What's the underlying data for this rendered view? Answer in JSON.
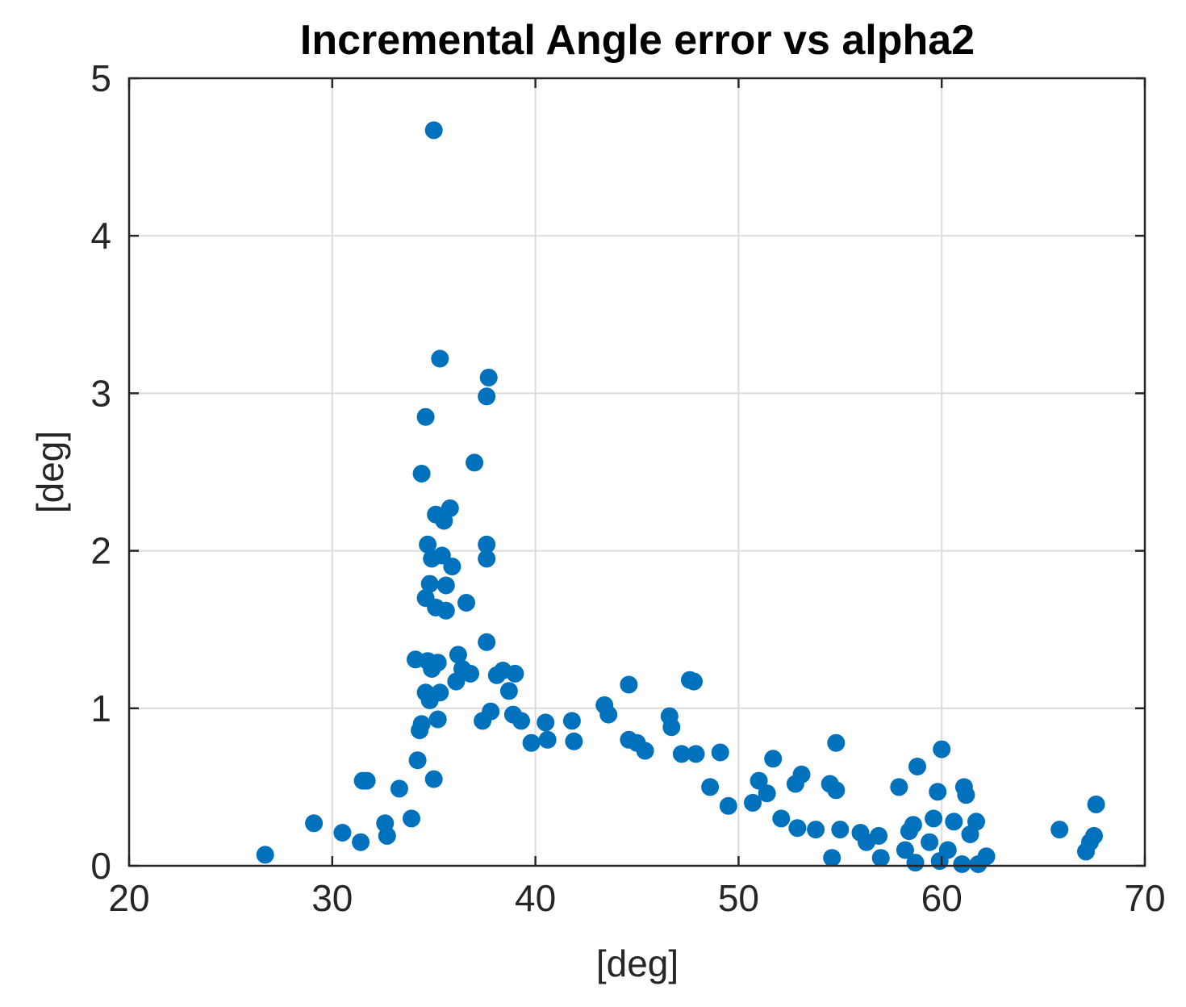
{
  "chart_data": {
    "type": "scatter",
    "title": "Incremental Angle error vs alpha2",
    "xlabel": "[deg]",
    "ylabel": "[deg]",
    "xlim": [
      20,
      70
    ],
    "ylim": [
      0,
      5
    ],
    "xticks": [
      "20",
      "30",
      "40",
      "50",
      "60",
      "70"
    ],
    "yticks": [
      "0",
      "1",
      "2",
      "3",
      "4",
      "5"
    ],
    "grid": true,
    "marker_color": "#0072BD",
    "series": [
      {
        "points": [
          [
            26.7,
            0.07
          ],
          [
            29.1,
            0.27
          ],
          [
            30.5,
            0.21
          ],
          [
            31.4,
            0.15
          ],
          [
            31.5,
            0.54
          ],
          [
            31.7,
            0.54
          ],
          [
            32.6,
            0.27
          ],
          [
            32.7,
            0.19
          ],
          [
            33.3,
            0.49
          ],
          [
            33.9,
            0.3
          ],
          [
            34.1,
            1.31
          ],
          [
            34.2,
            0.67
          ],
          [
            34.3,
            0.86
          ],
          [
            34.4,
            0.9
          ],
          [
            34.4,
            2.49
          ],
          [
            34.6,
            1.1
          ],
          [
            34.6,
            1.7
          ],
          [
            34.6,
            2.85
          ],
          [
            34.7,
            1.3
          ],
          [
            34.7,
            2.04
          ],
          [
            34.8,
            1.05
          ],
          [
            34.8,
            1.79
          ],
          [
            34.9,
            1.25
          ],
          [
            34.9,
            1.95
          ],
          [
            35.0,
            4.67
          ],
          [
            35.0,
            0.55
          ],
          [
            35.1,
            1.64
          ],
          [
            35.1,
            2.23
          ],
          [
            35.2,
            0.93
          ],
          [
            35.2,
            1.29
          ],
          [
            35.3,
            1.1
          ],
          [
            35.3,
            3.22
          ],
          [
            35.4,
            1.97
          ],
          [
            35.5,
            2.19
          ],
          [
            35.6,
            1.78
          ],
          [
            35.6,
            1.62
          ],
          [
            35.8,
            2.27
          ],
          [
            35.9,
            1.9
          ],
          [
            36.1,
            1.17
          ],
          [
            36.2,
            1.34
          ],
          [
            36.4,
            1.25
          ],
          [
            36.6,
            1.67
          ],
          [
            36.8,
            1.22
          ],
          [
            37.0,
            2.56
          ],
          [
            37.4,
            0.92
          ],
          [
            37.6,
            2.04
          ],
          [
            37.6,
            1.95
          ],
          [
            37.6,
            1.42
          ],
          [
            37.7,
            3.1
          ],
          [
            37.6,
            2.98
          ],
          [
            37.8,
            0.98
          ],
          [
            38.1,
            1.21
          ],
          [
            38.4,
            1.24
          ],
          [
            38.7,
            1.11
          ],
          [
            38.9,
            0.96
          ],
          [
            39.0,
            1.22
          ],
          [
            39.3,
            0.92
          ],
          [
            39.8,
            0.78
          ],
          [
            40.5,
            0.91
          ],
          [
            40.6,
            0.8
          ],
          [
            41.8,
            0.92
          ],
          [
            41.9,
            0.79
          ],
          [
            43.4,
            1.02
          ],
          [
            43.6,
            0.96
          ],
          [
            44.6,
            1.15
          ],
          [
            44.6,
            0.8
          ],
          [
            45.0,
            0.78
          ],
          [
            45.4,
            0.73
          ],
          [
            46.6,
            0.95
          ],
          [
            46.7,
            0.88
          ],
          [
            47.2,
            0.71
          ],
          [
            47.6,
            1.18
          ],
          [
            47.8,
            1.17
          ],
          [
            47.9,
            0.71
          ],
          [
            48.6,
            0.5
          ],
          [
            49.1,
            0.72
          ],
          [
            49.5,
            0.38
          ],
          [
            50.7,
            0.4
          ],
          [
            51.0,
            0.54
          ],
          [
            51.7,
            0.68
          ],
          [
            51.4,
            0.46
          ],
          [
            52.1,
            0.3
          ],
          [
            52.8,
            0.52
          ],
          [
            53.1,
            0.58
          ],
          [
            52.9,
            0.24
          ],
          [
            53.8,
            0.23
          ],
          [
            54.5,
            0.52
          ],
          [
            54.8,
            0.78
          ],
          [
            54.8,
            0.48
          ],
          [
            55.0,
            0.23
          ],
          [
            54.6,
            0.05
          ],
          [
            56.0,
            0.21
          ],
          [
            56.3,
            0.15
          ],
          [
            56.9,
            0.19
          ],
          [
            57.0,
            0.05
          ],
          [
            57.9,
            0.5
          ],
          [
            58.2,
            0.1
          ],
          [
            58.4,
            0.22
          ],
          [
            58.6,
            0.26
          ],
          [
            58.8,
            0.63
          ],
          [
            58.7,
            0.02
          ],
          [
            59.4,
            0.15
          ],
          [
            59.6,
            0.3
          ],
          [
            59.8,
            0.47
          ],
          [
            59.9,
            0.03
          ],
          [
            60.0,
            0.74
          ],
          [
            60.3,
            0.1
          ],
          [
            60.6,
            0.28
          ],
          [
            61.0,
            0.01
          ],
          [
            61.1,
            0.5
          ],
          [
            61.2,
            0.45
          ],
          [
            61.4,
            0.2
          ],
          [
            61.7,
            0.28
          ],
          [
            61.8,
            0.01
          ],
          [
            62.2,
            0.06
          ],
          [
            65.8,
            0.23
          ],
          [
            67.1,
            0.09
          ],
          [
            67.3,
            0.15
          ],
          [
            67.5,
            0.19
          ],
          [
            67.6,
            0.39
          ]
        ]
      }
    ]
  }
}
